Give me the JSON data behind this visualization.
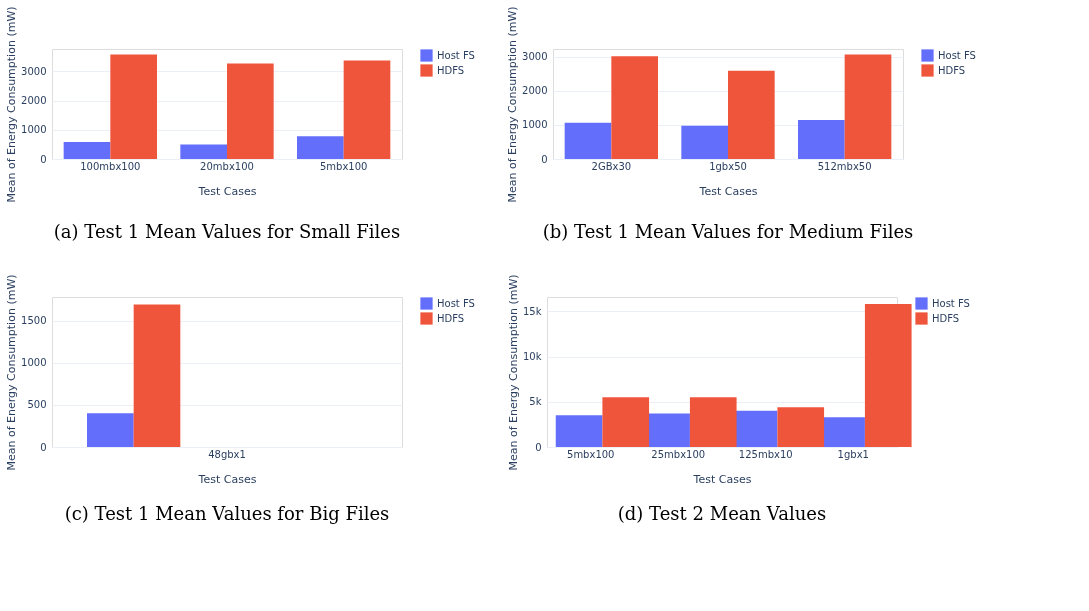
{
  "chart_data": [
    {
      "type": "bar",
      "title": "(a) Test 1 Mean Values for Small Files",
      "xlabel": "Test Cases",
      "ylabel": "Mean of Energy Consumption (mW)",
      "categories": [
        "100mbx100",
        "20mbx100",
        "5mbx100"
      ],
      "series": [
        {
          "name": "Host FS",
          "color": "#636efa",
          "values": [
            580,
            500,
            780
          ]
        },
        {
          "name": "HDFS",
          "color": "#ef553b",
          "values": [
            3580,
            3270,
            3380
          ]
        }
      ],
      "ylim": [
        0,
        3770
      ],
      "yticks": [
        0,
        1000,
        2000,
        3000
      ],
      "grid": "y",
      "legend": "top right"
    },
    {
      "type": "bar",
      "title": "(b) Test 1 Mean Values for Medium Files",
      "xlabel": "Test Cases",
      "ylabel": "Mean of Energy Consumption (mW)",
      "categories": [
        "2GBx30",
        "1gbx50",
        "512mbx50"
      ],
      "series": [
        {
          "name": "Host FS",
          "color": "#636efa",
          "values": [
            1060,
            970,
            1140
          ]
        },
        {
          "name": "HDFS",
          "color": "#ef553b",
          "values": [
            3010,
            2580,
            3060
          ]
        }
      ],
      "ylim": [
        0,
        3220
      ],
      "yticks": [
        0,
        1000,
        2000,
        3000
      ],
      "grid": "y",
      "legend": "top right"
    },
    {
      "type": "bar",
      "title": "(c) Test 1 Mean Values for Big Files",
      "xlabel": "Test Cases",
      "ylabel": "Mean of Energy Consumption (mW)",
      "categories": [
        "48gbx1"
      ],
      "series": [
        {
          "name": "Host FS",
          "color": "#636efa",
          "values": [
            400
          ]
        },
        {
          "name": "HDFS",
          "color": "#ef553b",
          "values": [
            1690
          ]
        }
      ],
      "ylim": [
        0,
        1780
      ],
      "yticks": [
        0,
        500,
        1000,
        1500
      ],
      "grid": "y",
      "legend": "top right"
    },
    {
      "type": "bar",
      "title": "(d) Test 2 Mean Values",
      "xlabel": "Test Cases",
      "ylabel": "Mean of Energy Consumption (mW)",
      "categories": [
        "5mbx100",
        "25mbx100",
        "125mbx10",
        "1gbx1"
      ],
      "series": [
        {
          "name": "Host FS",
          "color": "#636efa",
          "values": [
            3500,
            3700,
            4000,
            3300
          ]
        },
        {
          "name": "HDFS",
          "color": "#ef553b",
          "values": [
            5500,
            5500,
            4400,
            15800
          ]
        }
      ],
      "ylim": [
        0,
        16580
      ],
      "yticks": [
        0,
        {
          "value": 5000,
          "label": "5k"
        },
        {
          "value": 10000,
          "label": "10k"
        },
        {
          "value": 15000,
          "label": "15k"
        }
      ],
      "grid": "y",
      "legend": "top right"
    }
  ]
}
